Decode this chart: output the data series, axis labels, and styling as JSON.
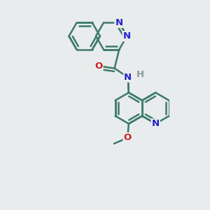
{
  "bg": "#e8ecec",
  "bond_color": "#3d7a6a",
  "bond_width": 1.8,
  "blue": "#2222cc",
  "red": "#cc2222",
  "gray": "#8a9a9a",
  "font_size": 9.5,
  "fig_w": 3.0,
  "fig_h": 3.0,
  "dpi": 100,
  "xlim": [
    -0.9,
    1.3
  ],
  "ylim": [
    -2.2,
    1.35
  ]
}
